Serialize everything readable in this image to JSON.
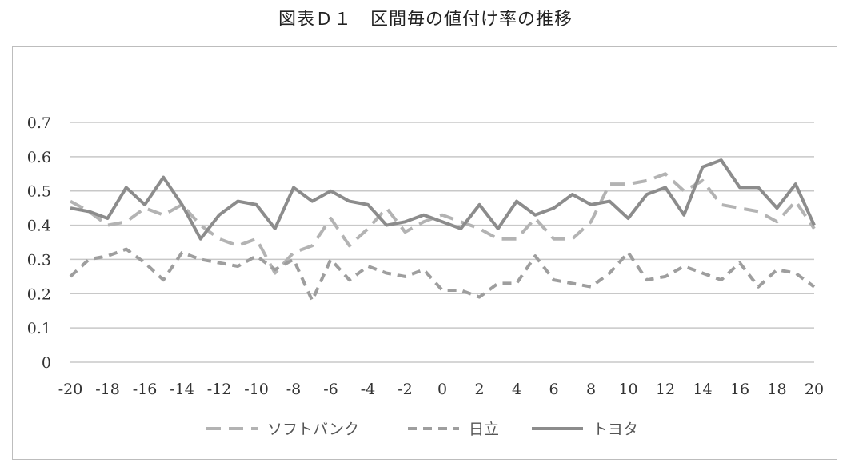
{
  "chart_data": {
    "type": "line",
    "title": "図表Ｄ１　区間毎の値付け率の推移",
    "xlabel": "",
    "ylabel": "",
    "x": [
      -20,
      -19,
      -18,
      -17,
      -16,
      -15,
      -14,
      -13,
      -12,
      -11,
      -10,
      -9,
      -8,
      -7,
      -6,
      -5,
      -4,
      -3,
      -2,
      -1,
      0,
      1,
      2,
      3,
      4,
      5,
      6,
      7,
      8,
      9,
      10,
      11,
      12,
      13,
      14,
      15,
      16,
      17,
      18,
      19,
      20
    ],
    "xticks": [
      "-20",
      "-18",
      "-16",
      "-14",
      "-12",
      "-10",
      "-8",
      "-6",
      "-4",
      "-2",
      "0",
      "2",
      "4",
      "6",
      "8",
      "10",
      "12",
      "14",
      "16",
      "18",
      "20"
    ],
    "yticks": [
      "0",
      "0.1",
      "0.2",
      "0.3",
      "0.4",
      "0.5",
      "0.6",
      "0.7"
    ],
    "ylim": [
      0,
      0.7
    ],
    "grid": true,
    "legend_position": "bottom",
    "series": [
      {
        "name": "ソフトバンク",
        "style": "long-dash",
        "color": "#b3b3b3",
        "values": [
          0.47,
          0.44,
          0.4,
          0.41,
          0.45,
          0.43,
          0.46,
          0.4,
          0.36,
          0.34,
          0.36,
          0.26,
          0.32,
          0.34,
          0.42,
          0.34,
          0.39,
          0.45,
          0.38,
          0.41,
          0.43,
          0.41,
          0.39,
          0.36,
          0.36,
          0.42,
          0.36,
          0.36,
          0.41,
          0.52,
          0.52,
          0.53,
          0.55,
          0.5,
          0.53,
          0.46,
          0.45,
          0.44,
          0.41,
          0.47,
          0.39
        ]
      },
      {
        "name": "日立",
        "style": "short-dash",
        "color": "#9e9e9e",
        "values": [
          0.25,
          0.3,
          0.31,
          0.33,
          0.29,
          0.24,
          0.32,
          0.3,
          0.29,
          0.28,
          0.31,
          0.27,
          0.3,
          0.18,
          0.3,
          0.24,
          0.28,
          0.26,
          0.25,
          0.27,
          0.21,
          0.21,
          0.19,
          0.23,
          0.23,
          0.31,
          0.24,
          0.23,
          0.22,
          0.26,
          0.32,
          0.24,
          0.25,
          0.28,
          0.26,
          0.24,
          0.29,
          0.22,
          0.27,
          0.26,
          0.22
        ]
      },
      {
        "name": "トヨタ",
        "style": "solid",
        "color": "#8c8c8c",
        "values": [
          0.45,
          0.44,
          0.42,
          0.51,
          0.46,
          0.54,
          0.46,
          0.36,
          0.43,
          0.47,
          0.46,
          0.39,
          0.51,
          0.47,
          0.5,
          0.47,
          0.46,
          0.4,
          0.41,
          0.43,
          0.41,
          0.39,
          0.46,
          0.39,
          0.47,
          0.43,
          0.45,
          0.49,
          0.46,
          0.47,
          0.42,
          0.49,
          0.51,
          0.43,
          0.57,
          0.59,
          0.51,
          0.51,
          0.45,
          0.52,
          0.4
        ]
      }
    ]
  }
}
